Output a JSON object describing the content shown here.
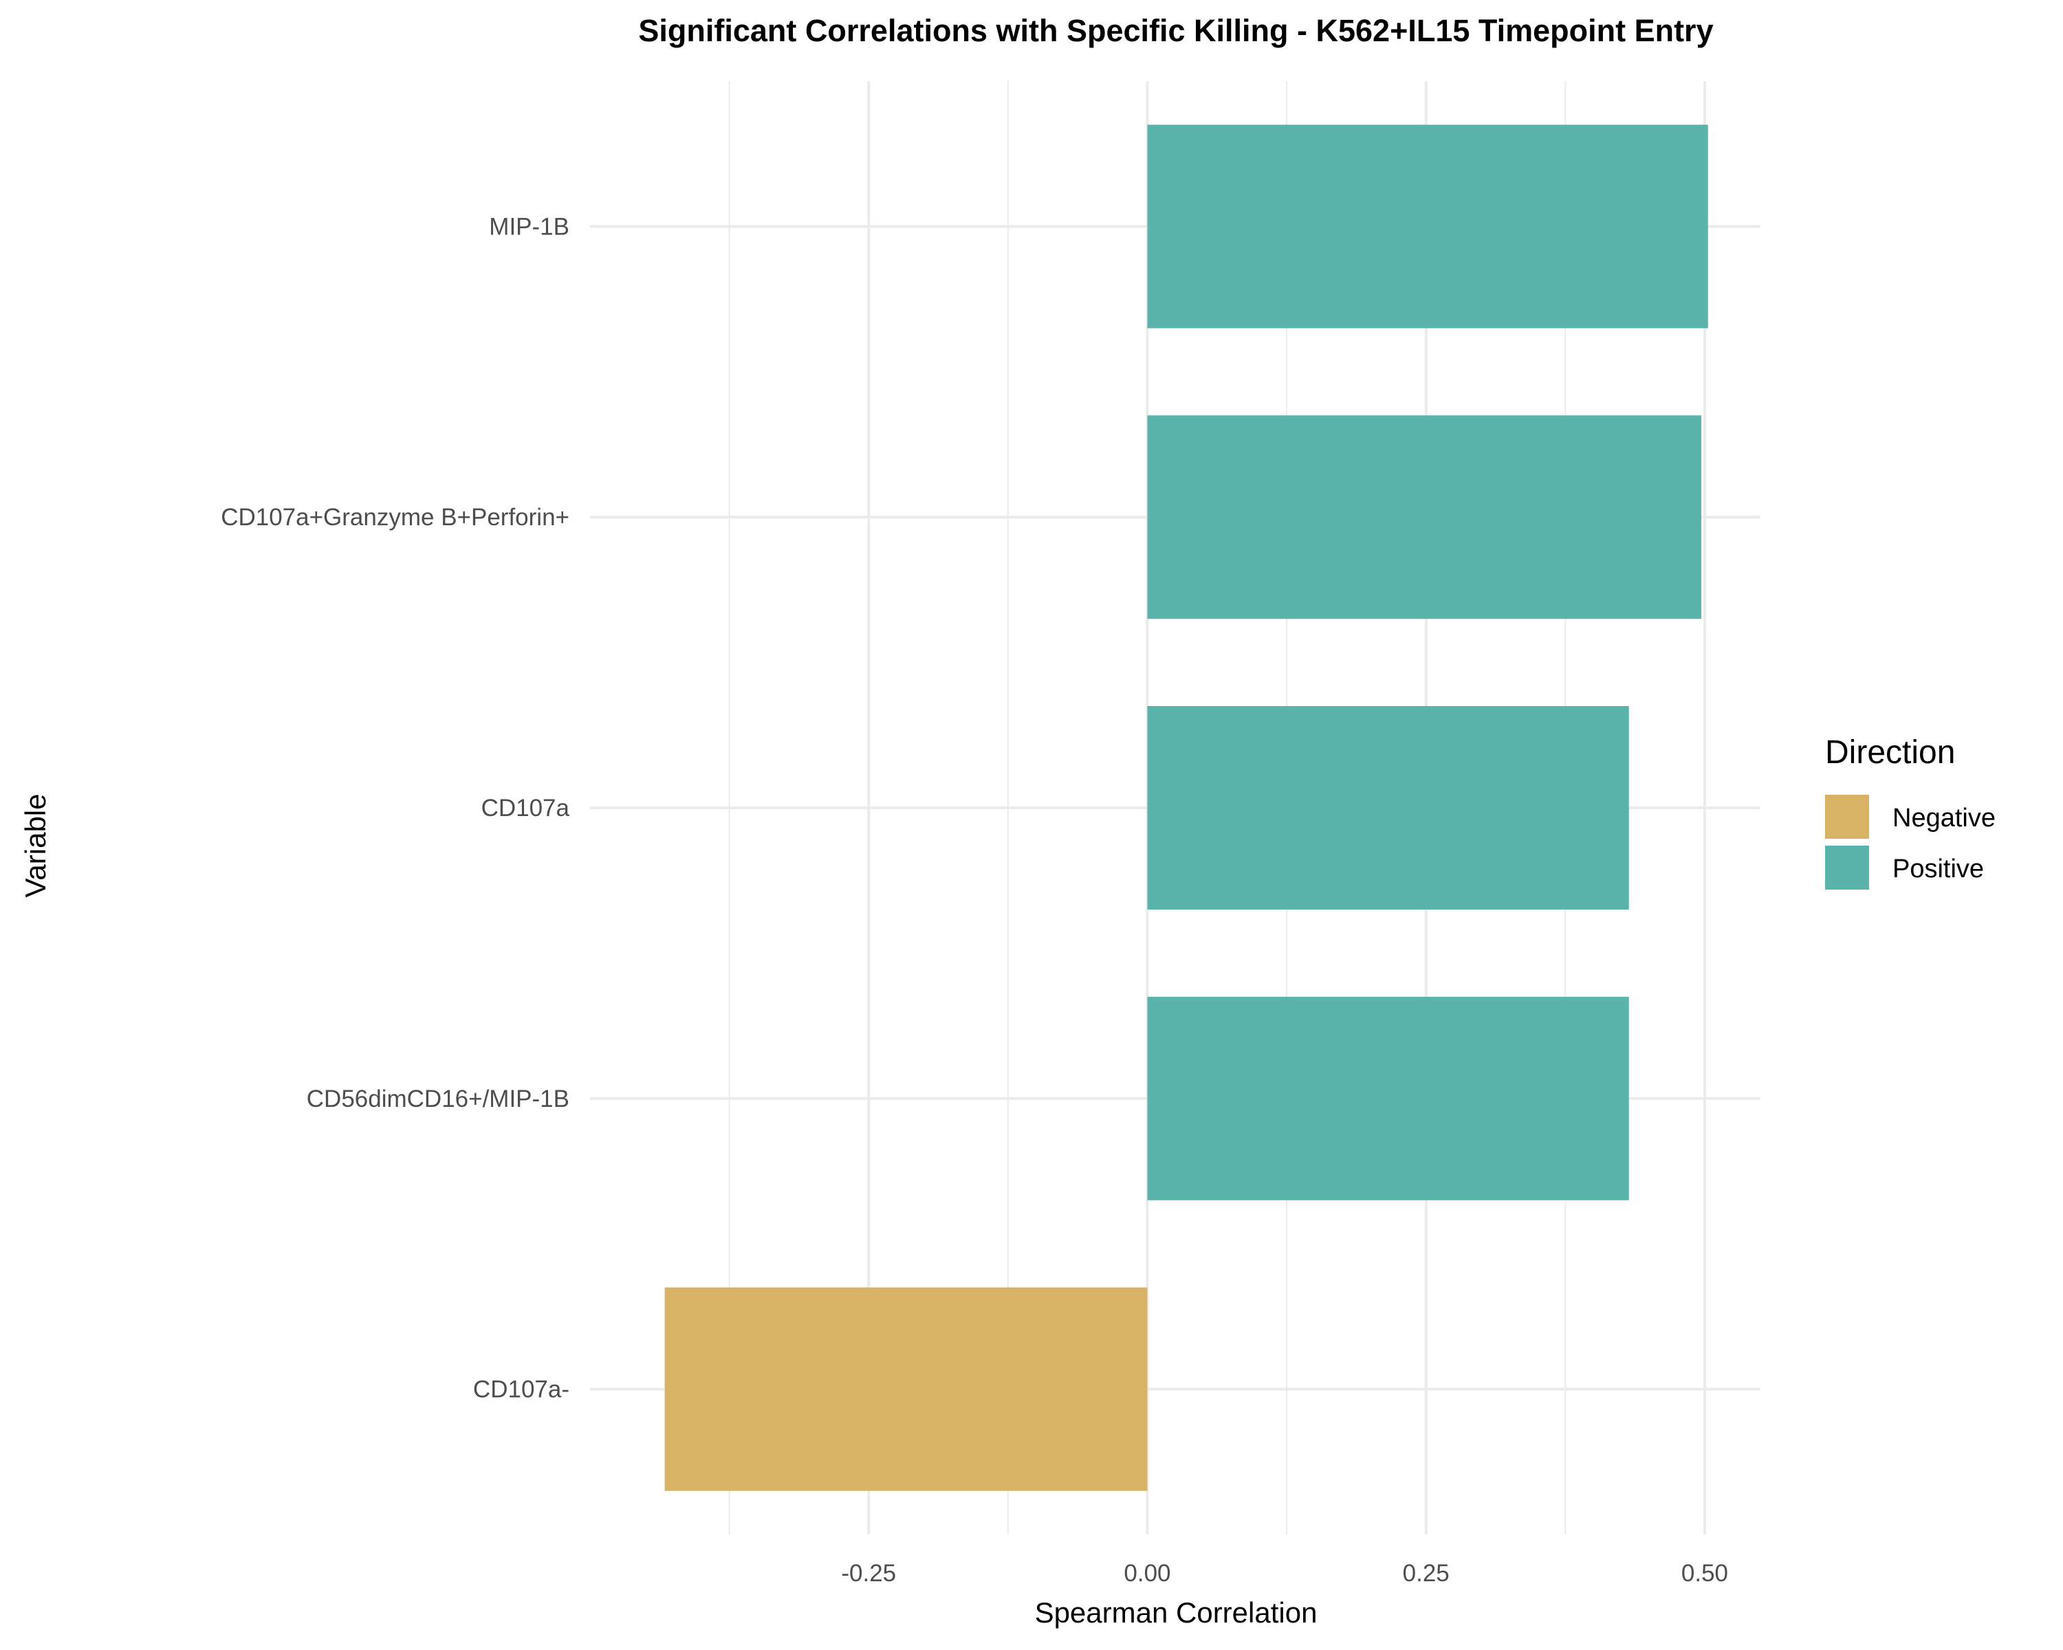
{
  "chart_data": {
    "type": "bar",
    "orientation": "horizontal",
    "title": "Significant Correlations with Specific Killing - K562+IL15 Timepoint Entry",
    "xlabel": "Spearman Correlation",
    "ylabel": "Variable",
    "categories": [
      "MIP-1B",
      "CD107a+Granzyme B+Perforin+",
      "CD107a",
      "CD56dimCD16+/MIP-1B",
      "CD107a-"
    ],
    "values": [
      0.503,
      0.497,
      0.432,
      0.432,
      -0.433
    ],
    "directions": [
      "Positive",
      "Positive",
      "Positive",
      "Positive",
      "Negative"
    ],
    "xlim": [
      -0.5,
      0.55
    ],
    "xticks": [
      -0.25,
      0.0,
      0.25,
      0.5
    ],
    "xtick_labels": [
      "-0.25",
      "0.00",
      "0.25",
      "0.50"
    ],
    "grid": true,
    "legend": {
      "title": "Direction",
      "placement": "right",
      "entries": [
        {
          "label": "Negative",
          "color": "#D8B365"
        },
        {
          "label": "Positive",
          "color": "#5AB4AC"
        }
      ]
    },
    "colors": {
      "Negative": "#D8B365",
      "Positive": "#5AB4AC"
    }
  }
}
